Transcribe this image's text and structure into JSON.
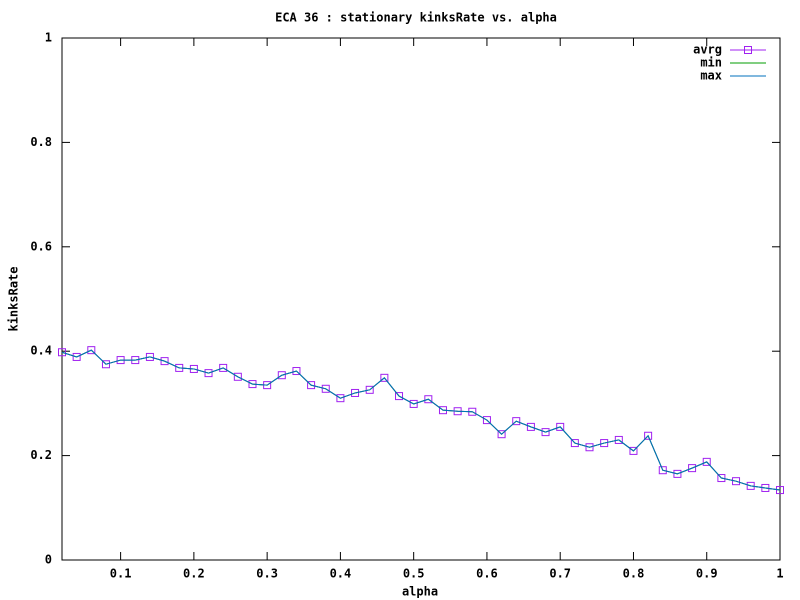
{
  "chart_data": {
    "type": "line",
    "title": "ECA 36 : stationary kinksRate vs. alpha",
    "x_label": "alpha",
    "y_label": "kinksRate",
    "x": [
      0.02,
      0.04,
      0.06,
      0.08,
      0.1,
      0.12,
      0.14,
      0.16,
      0.18,
      0.2,
      0.22,
      0.24,
      0.26,
      0.28,
      0.3,
      0.32,
      0.34,
      0.36,
      0.38,
      0.4,
      0.42,
      0.44,
      0.46,
      0.48,
      0.5,
      0.52,
      0.54,
      0.56,
      0.58,
      0.6,
      0.62,
      0.64,
      0.66,
      0.68,
      0.7,
      0.72,
      0.74,
      0.76,
      0.78,
      0.8,
      0.82,
      0.84,
      0.86,
      0.88,
      0.9,
      0.92,
      0.94,
      0.96,
      0.98,
      1
    ],
    "series": [
      {
        "name": "avrg",
        "color": "#a020f0",
        "marker": "square",
        "values": [
          0.398,
          0.389,
          0.402,
          0.375,
          0.383,
          0.383,
          0.389,
          0.381,
          0.368,
          0.366,
          0.358,
          0.368,
          0.351,
          0.337,
          0.335,
          0.354,
          0.362,
          0.335,
          0.328,
          0.31,
          0.32,
          0.326,
          0.349,
          0.314,
          0.299,
          0.308,
          0.287,
          0.285,
          0.284,
          0.268,
          0.241,
          0.266,
          0.255,
          0.245,
          0.255,
          0.224,
          0.216,
          0.224,
          0.23,
          0.209,
          0.238,
          0.172,
          0.165,
          0.176,
          0.188,
          0.157,
          0.151,
          0.142,
          0.138,
          0.134
        ]
      },
      {
        "name": "min",
        "color": "#009e00",
        "values": [
          0.398,
          0.389,
          0.402,
          0.375,
          0.383,
          0.383,
          0.389,
          0.381,
          0.368,
          0.366,
          0.358,
          0.368,
          0.351,
          0.337,
          0.335,
          0.354,
          0.362,
          0.335,
          0.328,
          0.31,
          0.32,
          0.326,
          0.349,
          0.314,
          0.299,
          0.308,
          0.287,
          0.285,
          0.284,
          0.268,
          0.241,
          0.266,
          0.255,
          0.245,
          0.255,
          0.224,
          0.216,
          0.224,
          0.23,
          0.209,
          0.238,
          0.172,
          0.165,
          0.176,
          0.188,
          0.157,
          0.151,
          0.142,
          0.138,
          0.134
        ]
      },
      {
        "name": "max",
        "color": "#0072bd",
        "values": [
          0.398,
          0.389,
          0.402,
          0.375,
          0.383,
          0.383,
          0.389,
          0.381,
          0.368,
          0.366,
          0.358,
          0.368,
          0.351,
          0.337,
          0.335,
          0.354,
          0.362,
          0.335,
          0.328,
          0.31,
          0.32,
          0.326,
          0.349,
          0.314,
          0.299,
          0.308,
          0.287,
          0.285,
          0.284,
          0.268,
          0.241,
          0.266,
          0.255,
          0.245,
          0.255,
          0.224,
          0.216,
          0.224,
          0.23,
          0.209,
          0.238,
          0.172,
          0.165,
          0.176,
          0.188,
          0.157,
          0.151,
          0.142,
          0.138,
          0.134
        ]
      }
    ],
    "xlim": [
      0.02,
      1
    ],
    "ylim": [
      0,
      1
    ],
    "xticks": [
      0.1,
      0.2,
      0.3,
      0.4,
      0.5,
      0.6,
      0.7,
      0.8,
      0.9,
      1
    ],
    "yticks": [
      0,
      0.2,
      0.4,
      0.6,
      0.8,
      1
    ],
    "legend": "top right",
    "grid": false
  }
}
